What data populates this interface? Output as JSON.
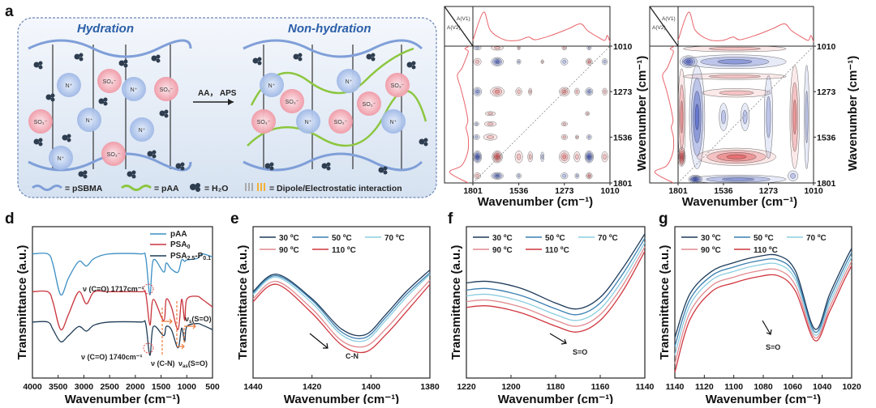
{
  "panel_letters": [
    "a",
    "b",
    "c",
    "d",
    "e",
    "f",
    "g"
  ],
  "schematic": {
    "left_title": "Hydration",
    "right_title": "Non-hydration",
    "arrow_label": "AA， APS",
    "legend": {
      "psbma": "= pSBMA",
      "paa": "= pAA",
      "water": "= H₂O",
      "interaction": "= Dipole/Electrostatic interaction"
    },
    "colors": {
      "psbma": "#7f9fd8",
      "paa": "#8cc63f",
      "cation": "#a9bfe8",
      "anion": "#f2a7b0"
    }
  },
  "chart_data": [
    {
      "id": "b",
      "type": "heatmap",
      "title": "",
      "xlabel": "Wavenumber (cm⁻¹)",
      "ylabel": "",
      "corner_labels": [
        "A(V1)",
        "A(V2)"
      ],
      "xlim": [
        1801,
        1010
      ],
      "ylim": [
        1010,
        1801
      ],
      "xticks": [
        "1801",
        "1536",
        "1273",
        "1010"
      ],
      "yticks": [
        "1010",
        "1273",
        "1536",
        "1801"
      ],
      "colors": {
        "positive": "#e0474c",
        "negative": "#3a4fc0",
        "spectrum": "#e8646a"
      },
      "spectrum": [
        [
          1801,
          0.1
        ],
        [
          1740,
          0.95
        ],
        [
          1700,
          0.4
        ],
        [
          1620,
          0.12
        ],
        [
          1540,
          0.1
        ],
        [
          1480,
          0.2
        ],
        [
          1440,
          0.12
        ],
        [
          1350,
          0.25
        ],
        [
          1250,
          0.45
        ],
        [
          1180,
          0.6
        ],
        [
          1140,
          0.4
        ],
        [
          1080,
          0.2
        ],
        [
          1040,
          0.1
        ],
        [
          1025,
          0.25
        ],
        [
          1010,
          0.05
        ]
      ],
      "peaks": [
        [
          1660,
          1650,
          30,
          35,
          1,
          1.0
        ],
        [
          1775,
          1650,
          25,
          35,
          -1,
          0.9
        ],
        [
          1130,
          1650,
          25,
          35,
          -1,
          0.9
        ],
        [
          1273,
          1650,
          30,
          35,
          1,
          0.6
        ],
        [
          1200,
          1650,
          18,
          30,
          1,
          0.4
        ],
        [
          1536,
          1650,
          22,
          35,
          1,
          0.4
        ],
        [
          1470,
          1650,
          14,
          30,
          1,
          0.3
        ],
        [
          1400,
          1650,
          10,
          28,
          -1,
          0.3
        ],
        [
          1040,
          1650,
          18,
          30,
          1,
          0.4
        ],
        [
          1660,
          1273,
          40,
          28,
          1,
          0.6
        ],
        [
          1775,
          1273,
          25,
          25,
          -1,
          0.5
        ],
        [
          1536,
          1273,
          18,
          22,
          1,
          0.3
        ],
        [
          1470,
          1273,
          10,
          20,
          1,
          0.25
        ],
        [
          1273,
          1273,
          30,
          25,
          1,
          0.5
        ],
        [
          1130,
          1273,
          22,
          22,
          -1,
          0.5
        ],
        [
          1200,
          1273,
          14,
          20,
          1,
          0.3
        ],
        [
          1040,
          1273,
          14,
          20,
          1,
          0.3
        ],
        [
          1660,
          1100,
          35,
          25,
          -1,
          0.8
        ],
        [
          1775,
          1100,
          22,
          20,
          1,
          0.4
        ],
        [
          1130,
          1100,
          18,
          20,
          1,
          0.6
        ],
        [
          1273,
          1100,
          20,
          20,
          -1,
          0.4
        ],
        [
          1536,
          1100,
          12,
          14,
          -1,
          0.3
        ],
        [
          1040,
          1100,
          15,
          18,
          -1,
          0.3
        ],
        [
          1400,
          1100,
          8,
          12,
          1,
          0.25
        ],
        [
          1660,
          1020,
          35,
          14,
          1,
          0.4
        ],
        [
          1775,
          1020,
          22,
          12,
          -1,
          0.3
        ],
        [
          1130,
          1020,
          12,
          12,
          -1,
          0.3
        ],
        [
          1273,
          1020,
          14,
          12,
          1,
          0.3
        ],
        [
          1536,
          1020,
          8,
          12,
          1,
          0.25
        ],
        [
          1660,
          1760,
          35,
          20,
          -1,
          0.8
        ],
        [
          1775,
          1760,
          20,
          18,
          1,
          0.4
        ],
        [
          1130,
          1760,
          18,
          18,
          1,
          0.5
        ],
        [
          1273,
          1760,
          20,
          18,
          -1,
          0.4
        ],
        [
          1536,
          1760,
          14,
          15,
          -1,
          0.3
        ],
        [
          1200,
          1760,
          12,
          15,
          -1,
          0.3
        ],
        [
          1700,
          1536,
          40,
          18,
          1,
          0.4
        ],
        [
          1780,
          1536,
          18,
          15,
          -1,
          0.3
        ],
        [
          1273,
          1536,
          18,
          15,
          1,
          0.3
        ],
        [
          1130,
          1536,
          14,
          15,
          -1,
          0.3
        ],
        [
          1200,
          1536,
          10,
          12,
          1,
          0.25
        ],
        [
          1700,
          1460,
          35,
          14,
          1,
          0.3
        ],
        [
          1780,
          1460,
          14,
          12,
          -1,
          0.25
        ],
        [
          1273,
          1460,
          18,
          12,
          1,
          0.25
        ],
        [
          1700,
          1400,
          30,
          12,
          1,
          0.25
        ],
        [
          1140,
          1400,
          12,
          12,
          1,
          0.25
        ]
      ]
    },
    {
      "id": "c",
      "type": "heatmap",
      "title": "",
      "xlabel": "Wavenumber (cm⁻¹)",
      "ylabel": "Wavenumber (cm⁻¹)",
      "corner_labels": [
        "A(V1)",
        "A(V2)"
      ],
      "xlim": [
        1801,
        1010
      ],
      "ylim": [
        1010,
        1801
      ],
      "xticks": [
        "1801",
        "1536",
        "1273",
        "1010"
      ],
      "yticks": [
        "1010",
        "1273",
        "1536",
        "1801"
      ],
      "colors": {
        "positive": "#e0474c",
        "negative": "#3a4fc0",
        "spectrum": "#e8646a"
      },
      "spectrum": [
        [
          1801,
          0.1
        ],
        [
          1740,
          0.95
        ],
        [
          1700,
          0.4
        ],
        [
          1620,
          0.12
        ],
        [
          1540,
          0.1
        ],
        [
          1480,
          0.2
        ],
        [
          1440,
          0.12
        ],
        [
          1350,
          0.25
        ],
        [
          1250,
          0.45
        ],
        [
          1180,
          0.6
        ],
        [
          1140,
          0.4
        ],
        [
          1080,
          0.2
        ],
        [
          1040,
          0.1
        ],
        [
          1025,
          0.25
        ],
        [
          1010,
          0.05
        ]
      ],
      "peaks": [
        [
          1470,
          1100,
          300,
          40,
          -1,
          0.5
        ],
        [
          1740,
          1100,
          50,
          35,
          -1,
          0.8
        ],
        [
          1470,
          1185,
          300,
          18,
          1,
          0.3
        ],
        [
          1470,
          1025,
          300,
          18,
          1,
          0.3
        ],
        [
          1780,
          1420,
          22,
          280,
          1,
          0.6
        ],
        [
          1690,
          1420,
          45,
          300,
          -1,
          0.7
        ],
        [
          1460,
          1650,
          230,
          50,
          1,
          0.75
        ],
        [
          1780,
          1650,
          22,
          55,
          1,
          0.9
        ],
        [
          1460,
          1280,
          200,
          25,
          1,
          0.35
        ],
        [
          1273,
          1420,
          25,
          240,
          -1,
          0.45
        ],
        [
          1120,
          1420,
          28,
          300,
          1,
          0.5
        ],
        [
          1050,
          1420,
          15,
          300,
          -1,
          0.3
        ],
        [
          1450,
          1780,
          280,
          25,
          -1,
          0.5
        ],
        [
          1700,
          1780,
          40,
          25,
          -1,
          0.9
        ],
        [
          1410,
          1420,
          25,
          80,
          -1,
          0.3
        ],
        [
          1536,
          1420,
          25,
          80,
          -1,
          0.3
        ],
        [
          1130,
          1760,
          30,
          30,
          -1,
          0.4
        ]
      ]
    },
    {
      "id": "d",
      "type": "line",
      "xlabel": "Wavenumber (cm⁻¹)",
      "ylabel": "Transmittance (a.u.)",
      "xlim": [
        4000,
        500
      ],
      "ylim": [
        0,
        1
      ],
      "xticks": [
        "4000",
        "3500",
        "3000",
        "2500",
        "2000",
        "1500",
        "1000",
        "500"
      ],
      "x": [
        4000,
        3700,
        3600,
        3450,
        3300,
        3100,
        2950,
        2800,
        2500,
        1900,
        1800,
        1717,
        1650,
        1450,
        1400,
        1300,
        1170,
        1100,
        1040,
        1000,
        800,
        700,
        500
      ],
      "series": [
        {
          "name": "pAA",
          "sub": "",
          "name2": "",
          "sub2": "",
          "color": "#3b8fc4",
          "values": [
            0.82,
            0.82,
            0.75,
            0.55,
            0.66,
            0.77,
            0.74,
            0.79,
            0.82,
            0.82,
            0.8,
            0.55,
            0.78,
            0.7,
            0.76,
            0.72,
            0.7,
            0.78,
            0.77,
            0.78,
            0.79,
            0.82,
            0.8
          ]
        },
        {
          "name": "PSA",
          "sub": "0",
          "name2": "",
          "sub2": "",
          "color": "#c8343c",
          "values": [
            0.57,
            0.57,
            0.5,
            0.32,
            0.42,
            0.57,
            0.49,
            0.57,
            0.57,
            0.57,
            0.56,
            0.35,
            0.52,
            0.38,
            0.52,
            0.47,
            0.32,
            0.52,
            0.38,
            0.52,
            0.54,
            0.52,
            0.47
          ]
        },
        {
          "name": "PSA",
          "sub": "2.5",
          "name2": "-P",
          "sub2": "0.1",
          "color": "#1f3b55",
          "values": [
            0.37,
            0.37,
            0.32,
            0.24,
            0.28,
            0.34,
            0.31,
            0.35,
            0.37,
            0.37,
            0.36,
            0.15,
            0.34,
            0.28,
            0.34,
            0.32,
            0.2,
            0.33,
            0.24,
            0.34,
            0.36,
            0.35,
            0.32
          ]
        }
      ],
      "annotations": {
        "co_paa": "ν (C=O) 1717cm⁻¹",
        "co_psa": "ν (C=O) 1740cm⁻¹",
        "cn": "ν (C-N)",
        "vas_main": "ν",
        "vas_sub": "as",
        "vas_tail": "(S=O)",
        "vs_main": "ν",
        "vs_sub": "s",
        "vs_tail": "(S=O)"
      }
    },
    {
      "id": "e",
      "type": "line",
      "xlabel": "Wavenumber (cm⁻¹)",
      "ylabel": "Transmittance (a.u.)",
      "xlim": [
        1440,
        1380
      ],
      "ylim": [
        0,
        1.05
      ],
      "xticks": [
        "1440",
        "1420",
        "1400",
        "1380"
      ],
      "x": [
        1440,
        1432,
        1420,
        1410,
        1402,
        1395,
        1388,
        1380
      ],
      "series": [
        {
          "name": "30 ºC",
          "color": "#1d3a5a",
          "values": [
            0.6,
            0.72,
            0.55,
            0.34,
            0.3,
            0.44,
            0.6,
            0.75
          ]
        },
        {
          "name": "50 ºC",
          "color": "#3b7fb0",
          "values": [
            0.59,
            0.71,
            0.54,
            0.32,
            0.28,
            0.42,
            0.58,
            0.73
          ]
        },
        {
          "name": "70 ºC",
          "color": "#8ccde0",
          "values": [
            0.58,
            0.7,
            0.52,
            0.3,
            0.26,
            0.4,
            0.56,
            0.72
          ]
        },
        {
          "name": "90 ºC",
          "color": "#e08a90",
          "values": [
            0.55,
            0.67,
            0.48,
            0.26,
            0.22,
            0.34,
            0.5,
            0.68
          ]
        },
        {
          "name": "110 ºC",
          "color": "#d0373f",
          "values": [
            0.53,
            0.65,
            0.45,
            0.23,
            0.18,
            0.3,
            0.46,
            0.65
          ]
        }
      ],
      "annotation": "C-N"
    },
    {
      "id": "f",
      "type": "line",
      "xlabel": "Wavenumber (cm⁻¹)",
      "ylabel": "Transmittance (a.u.)",
      "xlim": [
        1220,
        1140
      ],
      "ylim": [
        0,
        1.05
      ],
      "xticks": [
        "1220",
        "1200",
        "1180",
        "1160",
        "1140"
      ],
      "x": [
        1220,
        1210,
        1195,
        1180,
        1170,
        1160,
        1150,
        1140
      ],
      "series": [
        {
          "name": "30 ºC",
          "color": "#1d3a5a",
          "values": [
            0.66,
            0.67,
            0.62,
            0.52,
            0.48,
            0.56,
            0.76,
            1.0
          ]
        },
        {
          "name": "50 ºC",
          "color": "#3b7fb0",
          "values": [
            0.61,
            0.62,
            0.57,
            0.48,
            0.44,
            0.52,
            0.72,
            0.97
          ]
        },
        {
          "name": "70 ºC",
          "color": "#8ccde0",
          "values": [
            0.57,
            0.58,
            0.53,
            0.44,
            0.4,
            0.48,
            0.68,
            0.94
          ]
        },
        {
          "name": "90 ºC",
          "color": "#e08a90",
          "values": [
            0.53,
            0.54,
            0.49,
            0.4,
            0.36,
            0.44,
            0.64,
            0.91
          ]
        },
        {
          "name": "110 ºC",
          "color": "#d0373f",
          "values": [
            0.49,
            0.5,
            0.45,
            0.36,
            0.32,
            0.4,
            0.6,
            0.88
          ]
        }
      ],
      "annotation": "S=O"
    },
    {
      "id": "g",
      "type": "line",
      "xlabel": "Wavenumber (cm⁻¹)",
      "ylabel": "Transmittance (a.u.)",
      "xlim": [
        1140,
        1020
      ],
      "ylim": [
        0,
        1.05
      ],
      "xticks": [
        "1140",
        "1120",
        "1100",
        "1080",
        "1060",
        "1040",
        "1020"
      ],
      "x": [
        1140,
        1130,
        1115,
        1100,
        1085,
        1070,
        1058,
        1045,
        1035,
        1025,
        1020
      ],
      "series": [
        {
          "name": "30 ºC",
          "color": "#1d3a5a",
          "values": [
            0.28,
            0.58,
            0.74,
            0.8,
            0.84,
            0.85,
            0.74,
            0.34,
            0.58,
            0.8,
            0.9
          ]
        },
        {
          "name": "50 ºC",
          "color": "#3b7fb0",
          "values": [
            0.22,
            0.54,
            0.71,
            0.77,
            0.81,
            0.82,
            0.71,
            0.32,
            0.55,
            0.77,
            0.87
          ]
        },
        {
          "name": "70 ºC",
          "color": "#8ccde0",
          "values": [
            0.16,
            0.5,
            0.68,
            0.74,
            0.78,
            0.79,
            0.68,
            0.3,
            0.52,
            0.74,
            0.84
          ]
        },
        {
          "name": "90 ºC",
          "color": "#e08a90",
          "values": [
            0.1,
            0.45,
            0.64,
            0.7,
            0.74,
            0.75,
            0.64,
            0.28,
            0.49,
            0.71,
            0.81
          ]
        },
        {
          "name": "110 ºC",
          "color": "#d0373f",
          "values": [
            0.04,
            0.4,
            0.6,
            0.66,
            0.7,
            0.71,
            0.6,
            0.26,
            0.46,
            0.68,
            0.78
          ]
        }
      ],
      "annotation": "S=O"
    }
  ]
}
